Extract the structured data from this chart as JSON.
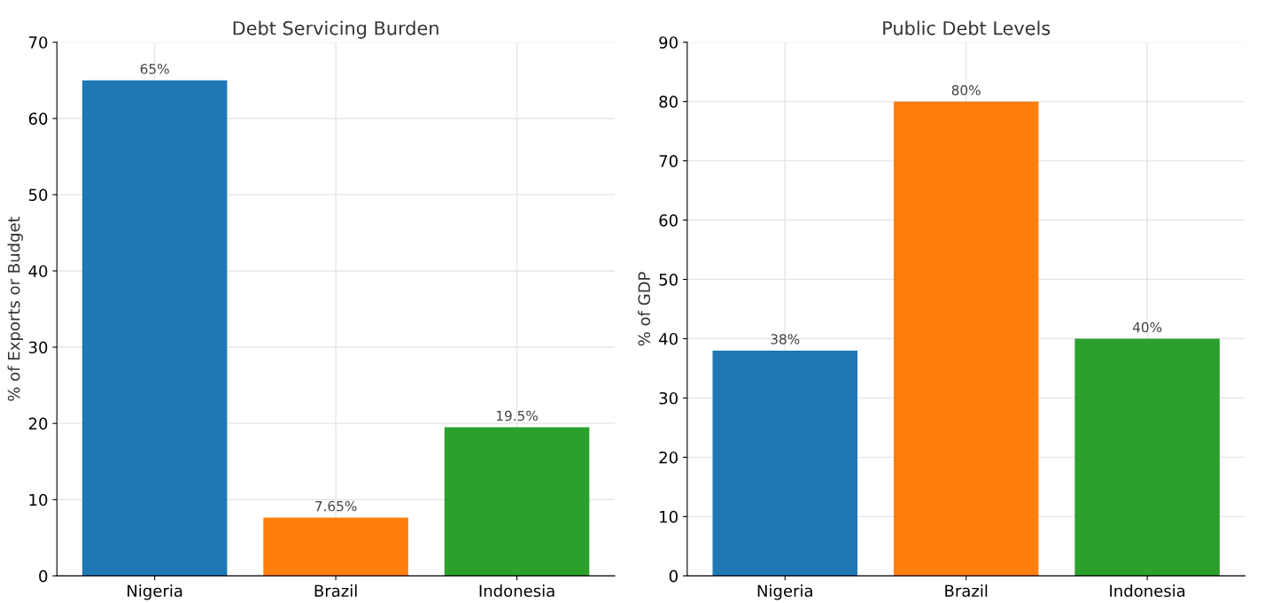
{
  "chart_data": [
    {
      "type": "bar",
      "title": "Debt Servicing Burden",
      "ylabel": "% of Exports or Budget",
      "categories": [
        "Nigeria",
        "Brazil",
        "Indonesia"
      ],
      "values": [
        65,
        7.65,
        19.5
      ],
      "colors": [
        "#1f77b4",
        "#ff7f0e",
        "#2ca02c"
      ],
      "value_labels": [
        "65%",
        "7.65%",
        "19.5%"
      ],
      "ylim": [
        0,
        70
      ],
      "yticks": [
        0,
        10,
        20,
        30,
        40,
        50,
        60,
        70
      ],
      "grid": true
    },
    {
      "type": "bar",
      "title": "Public Debt Levels",
      "ylabel": "% of GDP",
      "categories": [
        "Nigeria",
        "Brazil",
        "Indonesia"
      ],
      "values": [
        38,
        80,
        40
      ],
      "colors": [
        "#1f77b4",
        "#ff7f0e",
        "#2ca02c"
      ],
      "value_labels": [
        "38%",
        "80%",
        "40%"
      ],
      "ylim": [
        0,
        90
      ],
      "yticks": [
        0,
        10,
        20,
        30,
        40,
        50,
        60,
        70,
        80,
        90
      ],
      "grid": true
    }
  ]
}
